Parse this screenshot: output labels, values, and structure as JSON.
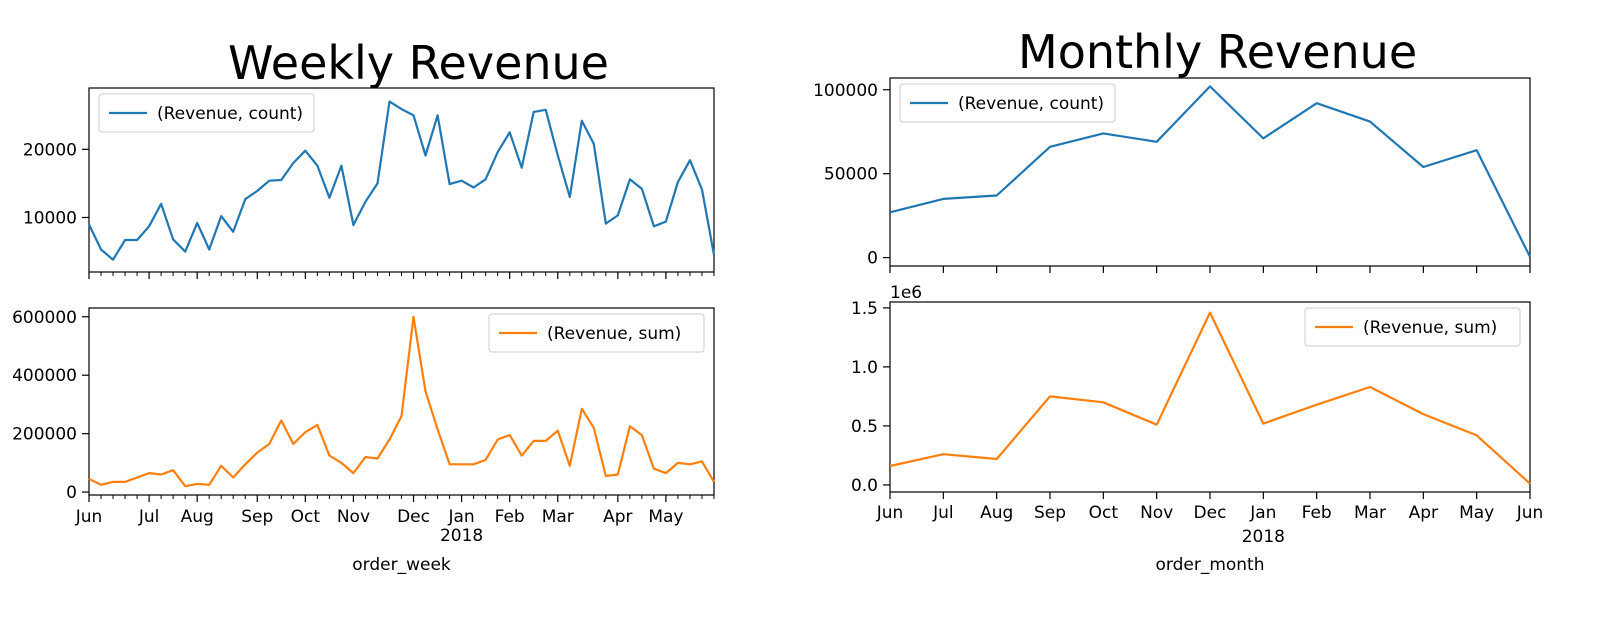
{
  "titles": {
    "weekly": "Weekly Revenue",
    "monthly": "Monthly Revenue"
  },
  "colors": {
    "count": "#1f77b4",
    "sum": "#ff7f0e",
    "axis": "#000000"
  },
  "chart_data": [
    {
      "type": "line",
      "title": "Weekly Revenue",
      "xlabel": "order_week",
      "x_tick_labels": [
        "Jun",
        "Jul",
        "Aug",
        "Sep",
        "Oct",
        "Nov",
        "Dec",
        "Jan",
        "Feb",
        "Mar",
        "Apr",
        "May"
      ],
      "year_label": "2018",
      "x_domain": [
        0,
        52
      ],
      "x_ticks": [
        0,
        5,
        9,
        14,
        18,
        22,
        27,
        31,
        35,
        39,
        44,
        48
      ],
      "subplots": [
        {
          "series": [
            {
              "name": "(Revenue, count)",
              "values": [
                9000,
                5300,
                3800,
                6700,
                6700,
                8700,
                12000,
                6800,
                5000,
                9200,
                5300,
                10200,
                7900,
                12700,
                13900,
                15400,
                15500,
                18000,
                19800,
                17600,
                12900,
                17600,
                8900,
                12300,
                15000,
                27000,
                25900,
                25000,
                19100,
                25000,
                14900,
                15400,
                14400,
                15600,
                19600,
                22500,
                17300,
                25500,
                25800,
                19100,
                13000,
                24200,
                20800,
                9100,
                10300,
                15600,
                14200,
                8700,
                9400,
                15200,
                18400,
                14100,
                4500
              ]
            }
          ],
          "ylim": [
            2000,
            29000
          ],
          "yticks": [
            10000,
            20000
          ],
          "legend": "upper left"
        },
        {
          "series": [
            {
              "name": "(Revenue, sum)",
              "values": [
                45000,
                25000,
                35000,
                35000,
                50000,
                65000,
                60000,
                75000,
                20000,
                28000,
                25000,
                90000,
                50000,
                95000,
                135000,
                165000,
                245000,
                165000,
                205000,
                230000,
                125000,
                100000,
                65000,
                120000,
                115000,
                180000,
                260000,
                600000,
                345000,
                215000,
                95000,
                95000,
                95000,
                110000,
                180000,
                195000,
                125000,
                175000,
                175000,
                210000,
                90000,
                285000,
                220000,
                55000,
                60000,
                225000,
                195000,
                80000,
                65000,
                100000,
                95000,
                105000,
                35000
              ]
            }
          ],
          "ylim": [
            -10000,
            630000
          ],
          "yticks": [
            0,
            200000,
            400000,
            600000
          ],
          "legend": "upper right"
        }
      ]
    },
    {
      "type": "line",
      "title": "Monthly Revenue",
      "xlabel": "order_month",
      "x_tick_labels": [
        "Jun",
        "Jul",
        "Aug",
        "Sep",
        "Oct",
        "Nov",
        "Dec",
        "Jan",
        "Feb",
        "Mar",
        "Apr",
        "May",
        "Jun"
      ],
      "year_label": "2018",
      "subplots": [
        {
          "series": [
            {
              "name": "(Revenue, count)",
              "values": [
                27000,
                35000,
                37000,
                66000,
                74000,
                69000,
                102000,
                71000,
                92000,
                81000,
                54000,
                64000,
                500
              ]
            }
          ],
          "ylim": [
            -5000,
            107000
          ],
          "yticks": [
            0,
            50000,
            100000
          ],
          "legend": "upper left"
        },
        {
          "series": [
            {
              "name": "(Revenue, sum)",
              "values": [
                0.16,
                0.26,
                0.22,
                0.75,
                0.7,
                0.51,
                1.46,
                0.52,
                0.68,
                0.83,
                0.6,
                0.42,
                0.01
              ]
            }
          ],
          "ylim": [
            -0.06,
            1.55
          ],
          "yticks": [
            0.0,
            0.5,
            1.0,
            1.5
          ],
          "tick_format": "0.0",
          "offset_label": "1e6",
          "legend": "upper right"
        }
      ]
    }
  ]
}
